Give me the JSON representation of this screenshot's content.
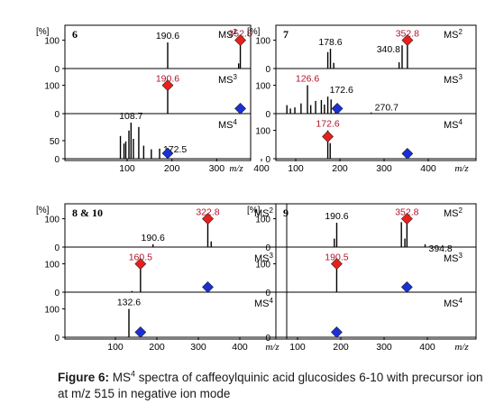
{
  "caption": {
    "label": "Figure 6:",
    "ms": "MS",
    "ms_exp": "4",
    "text": " spectra of caffeoylquinic acid glucosides 6-10 with precursor ion at m/z 515 in negative ion mode"
  },
  "colors": {
    "peak": "#000000",
    "precursor_marker": "#e8201b",
    "precursor_label": "#b3122a",
    "neutral_marker": "#1a2fd6",
    "axis": "#000000"
  },
  "chart_data": [
    {
      "type": "bar",
      "compound": "6",
      "pct_label": "[%]",
      "x_unit": "m/z",
      "x_ticks": [
        "100",
        "200",
        "300",
        "400"
      ],
      "xlim": [
        50,
        490
      ],
      "panels": [
        {
          "stage": "MS",
          "stage_exp": "2",
          "ylim": [
            0,
            140
          ],
          "y_ticks": [
            "100",
            "0"
          ],
          "peaks": [
            [
              190.6,
              92
            ],
            [
              349,
              18
            ],
            [
              352.8,
              100
            ]
          ],
          "labels": [
            {
              "mz": 190.6,
              "text": "190.6",
              "color": "black"
            },
            {
              "mz": 352.8,
              "text": "352.8",
              "color": "red"
            }
          ],
          "markers": [
            {
              "mz": 352.8,
              "y": 100,
              "color": "red"
            }
          ]
        },
        {
          "stage": "MS",
          "stage_exp": "3",
          "ylim": [
            0,
            140
          ],
          "y_ticks": [
            "100",
            "0"
          ],
          "peaks": [
            [
              190.6,
              100
            ]
          ],
          "labels": [
            {
              "mz": 190.6,
              "text": "190.6",
              "color": "red"
            }
          ],
          "markers": [
            {
              "mz": 190.6,
              "y": 100,
              "color": "red"
            },
            {
              "mz": 352.8,
              "y": 5,
              "color": "blue"
            }
          ]
        },
        {
          "stage": "MS",
          "stage_exp": "4",
          "ylim": [
            0,
            110
          ],
          "y_ticks": [
            "50",
            "0"
          ],
          "peaks": [
            [
              85,
              63
            ],
            [
              93,
              42
            ],
            [
              97,
              48
            ],
            [
              104,
              78
            ],
            [
              108.7,
              100
            ],
            [
              114,
              55
            ],
            [
              126,
              88
            ],
            [
              137,
              36
            ],
            [
              154,
              26
            ],
            [
              172.5,
              28
            ]
          ],
          "labels": [
            {
              "mz": 108.7,
              "text": "108.7",
              "color": "black"
            },
            {
              "mz": 172.5,
              "text": "172.5",
              "color": "black"
            }
          ],
          "markers": [
            {
              "mz": 190.6,
              "y": 5,
              "color": "blue"
            }
          ]
        }
      ]
    },
    {
      "type": "bar",
      "compound": "7",
      "pct_label": "[%]",
      "x_unit": "m/z",
      "x_ticks": [
        "100",
        "200",
        "300",
        "400"
      ],
      "xlim": [
        50,
        490
      ],
      "panels": [
        {
          "stage": "MS",
          "stage_exp": "2",
          "ylim": [
            0,
            140
          ],
          "y_ticks": [
            "100",
            "0"
          ],
          "peaks": [
            [
              172.6,
              58
            ],
            [
              178.6,
              70
            ],
            [
              186,
              20
            ],
            [
              334,
              22
            ],
            [
              340.8,
              82
            ],
            [
              352.8,
              100
            ]
          ],
          "labels": [
            {
              "mz": 178.6,
              "text": "178.6",
              "color": "black"
            },
            {
              "mz": 340.8,
              "text": "340.8",
              "color": "black"
            },
            {
              "mz": 352.8,
              "text": "352.8",
              "color": "red"
            }
          ],
          "markers": [
            {
              "mz": 352.8,
              "y": 100,
              "color": "red"
            }
          ]
        },
        {
          "stage": "MS",
          "stage_exp": "3",
          "ylim": [
            0,
            140
          ],
          "y_ticks": [
            "100",
            "0"
          ],
          "peaks": [
            [
              80,
              30
            ],
            [
              88,
              18
            ],
            [
              98,
              22
            ],
            [
              112,
              36
            ],
            [
              126.6,
              100
            ],
            [
              134,
              30
            ],
            [
              145,
              45
            ],
            [
              158,
              48
            ],
            [
              165,
              32
            ],
            [
              172.6,
              60
            ],
            [
              180,
              50
            ],
            [
              190,
              26
            ],
            [
              270.7,
              4
            ]
          ],
          "labels": [
            {
              "mz": 126.6,
              "text": "126.6",
              "color": "red"
            },
            {
              "mz": 172.6,
              "text": "172.6",
              "color": "black"
            },
            {
              "mz": 270.7,
              "text": "270.7",
              "color": "black"
            }
          ],
          "markers": [
            {
              "mz": 194,
              "y": 5,
              "color": "blue"
            }
          ]
        },
        {
          "stage": "MS",
          "stage_exp": "4",
          "ylim": [
            0,
            140
          ],
          "y_ticks": [
            "100",
            "0"
          ],
          "peaks": [
            [
              172.6,
              100
            ],
            [
              178,
              55
            ]
          ],
          "labels": [
            {
              "mz": 172.6,
              "text": "172.6",
              "color": "red"
            }
          ],
          "markers": [
            {
              "mz": 172.6,
              "y": 78,
              "color": "red"
            },
            {
              "mz": 352.8,
              "y": 5,
              "color": "blue"
            }
          ]
        }
      ]
    },
    {
      "type": "bar",
      "compound": "8 & 10",
      "pct_label": "[%]",
      "x_unit": "m/z",
      "x_ticks": [
        "100",
        "200",
        "300",
        "400"
      ],
      "xlim": [
        50,
        490
      ],
      "panels": [
        {
          "stage": "MS",
          "stage_exp": "2",
          "ylim": [
            0,
            140
          ],
          "y_ticks": [
            "100",
            "0"
          ],
          "peaks": [
            [
              190.6,
              10
            ],
            [
              322.8,
              100
            ],
            [
              331,
              20
            ]
          ],
          "labels": [
            {
              "mz": 190.6,
              "text": "190.6",
              "color": "black"
            },
            {
              "mz": 322.8,
              "text": "322.8",
              "color": "red"
            }
          ],
          "markers": [
            {
              "mz": 322.8,
              "y": 100,
              "color": "red"
            }
          ]
        },
        {
          "stage": "MS",
          "stage_exp": "3",
          "ylim": [
            0,
            140
          ],
          "y_ticks": [
            "100",
            "0"
          ],
          "peaks": [
            [
              140,
              4
            ],
            [
              160.5,
              100
            ]
          ],
          "labels": [
            {
              "mz": 160.5,
              "text": "160.5",
              "color": "red"
            }
          ],
          "markers": [
            {
              "mz": 160.5,
              "y": 100,
              "color": "red"
            },
            {
              "mz": 322.8,
              "y": 5,
              "color": "blue"
            }
          ]
        },
        {
          "stage": "MS",
          "stage_exp": "4",
          "ylim": [
            0,
            140
          ],
          "y_ticks": [
            "100",
            "0"
          ],
          "peaks": [
            [
              132.6,
              100
            ]
          ],
          "labels": [
            {
              "mz": 132.6,
              "text": "132.6",
              "color": "black"
            }
          ],
          "markers": [
            {
              "mz": 160.5,
              "y": 5,
              "color": "blue"
            }
          ]
        }
      ]
    },
    {
      "type": "bar",
      "compound": "9",
      "pct_label": "[%]",
      "x_unit": "m/z",
      "x_ticks": [
        "100",
        "200",
        "300",
        "400"
      ],
      "xlim": [
        50,
        490
      ],
      "panels": [
        {
          "stage": "MS",
          "stage_exp": "2",
          "ylim": [
            0,
            140
          ],
          "y_ticks": [
            "100",
            "0"
          ],
          "peaks": [
            [
              185,
              30
            ],
            [
              190.6,
              86
            ],
            [
              340,
              88
            ],
            [
              348,
              30
            ],
            [
              352.8,
              100
            ],
            [
              394.8,
              10
            ]
          ],
          "labels": [
            {
              "mz": 190.6,
              "text": "190.6",
              "color": "black"
            },
            {
              "mz": 352.8,
              "text": "352.8",
              "color": "red"
            },
            {
              "mz": 394.8,
              "text": "394.8",
              "color": "black"
            }
          ],
          "markers": [
            {
              "mz": 352.8,
              "y": 100,
              "color": "red"
            }
          ]
        },
        {
          "stage": "MS",
          "stage_exp": "3",
          "ylim": [
            0,
            140
          ],
          "y_ticks": [
            "100",
            "0"
          ],
          "peaks": [
            [
              190.5,
              100
            ]
          ],
          "labels": [
            {
              "mz": 190.5,
              "text": "190.5",
              "color": "red"
            }
          ],
          "markers": [
            {
              "mz": 190.5,
              "y": 100,
              "color": "red"
            },
            {
              "mz": 352.8,
              "y": 5,
              "color": "blue"
            }
          ]
        },
        {
          "stage": "MS",
          "stage_exp": "4",
          "ylim": [
            0,
            140
          ],
          "y_ticks": [
            "0"
          ],
          "peaks": [],
          "labels": [],
          "markers": [
            {
              "mz": 190.5,
              "y": 5,
              "color": "blue"
            }
          ]
        }
      ]
    }
  ]
}
